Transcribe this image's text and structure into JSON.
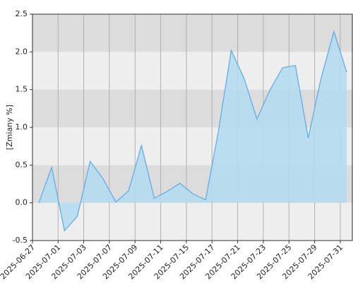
{
  "chart_data": {
    "type": "area",
    "y_label": "[Zmiany %]",
    "xticks": [
      "2025-06-27",
      "2025-07-01",
      "2025-07-03",
      "2025-07-07",
      "2025-07-09",
      "2025-07-11",
      "2025-07-15",
      "2025-07-17",
      "2025-07-21",
      "2025-07-23",
      "2025-07-25",
      "2025-07-29",
      "2025-07-31"
    ],
    "values": [
      0.0,
      0.47,
      -0.37,
      -0.18,
      0.55,
      0.32,
      0.01,
      0.16,
      0.76,
      0.06,
      0.15,
      0.26,
      0.12,
      0.04,
      0.95,
      2.02,
      1.65,
      1.11,
      1.49,
      1.79,
      1.82,
      0.86,
      1.65,
      2.27,
      1.73
    ],
    "ylim": [
      -0.5,
      2.5
    ],
    "yticks": [
      {
        "value": -0.5,
        "label": "-0.5"
      },
      {
        "value": 0,
        "label": "0.0"
      },
      {
        "value": 0.5,
        "label": "0.5"
      },
      {
        "value": 1,
        "label": "1.0"
      },
      {
        "value": 1.5,
        "label": "1.5"
      },
      {
        "value": 2,
        "label": "2.0"
      },
      {
        "value": 2.5,
        "label": "2.5"
      }
    ],
    "color": "#5aa9e6",
    "fill": "#b4dcef",
    "band_colors": [
      "#eeeeee",
      "#dcdcdc"
    ],
    "grid": true
  }
}
